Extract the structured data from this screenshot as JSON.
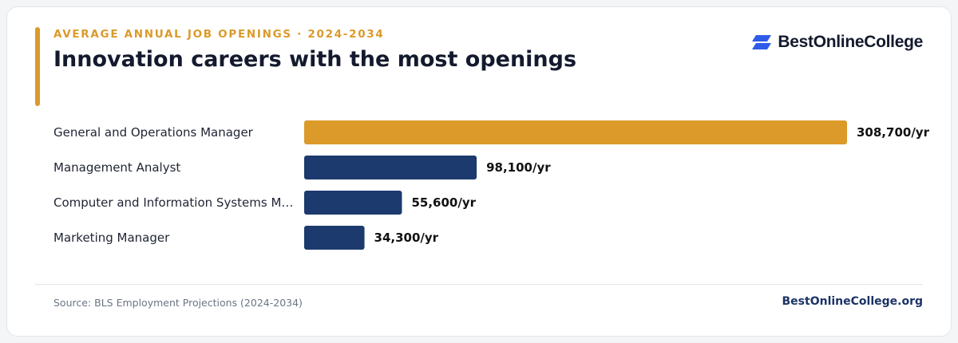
{
  "header": {
    "eyebrow": "AVERAGE ANNUAL JOB OPENINGS · 2024-2034",
    "title": "Innovation careers with the most openings"
  },
  "brand": {
    "logo_icon": "bestonlinecollege-logo-icon",
    "logo_text": "BestOnlineCollege",
    "footer_text": "BestOnlineCollege.org"
  },
  "footer": {
    "source": "Source: BLS Employment Projections (2024-2034)"
  },
  "colors": {
    "accent": "#db9a2a",
    "primary_bar": "#1c3a6e",
    "highlight_bar": "#db9a2a",
    "label_text": "#1f2433",
    "value_text": "#111111",
    "logo_blue": "#2f5be8"
  },
  "chart_data": {
    "type": "bar",
    "orientation": "horizontal",
    "categories": [
      "General and Operations Manager",
      "Management Analyst",
      "Computer and Information Systems M…",
      "Marketing Manager"
    ],
    "values": [
      308700,
      98100,
      55600,
      34300
    ],
    "value_labels": [
      "308,700/yr",
      "98,100/yr",
      "55,600/yr",
      "34,300/yr"
    ],
    "highlight_index": 0,
    "title": "",
    "xlabel": "",
    "ylabel": "",
    "xlim": [
      0,
      308700
    ],
    "grid": false,
    "legend": "none"
  }
}
